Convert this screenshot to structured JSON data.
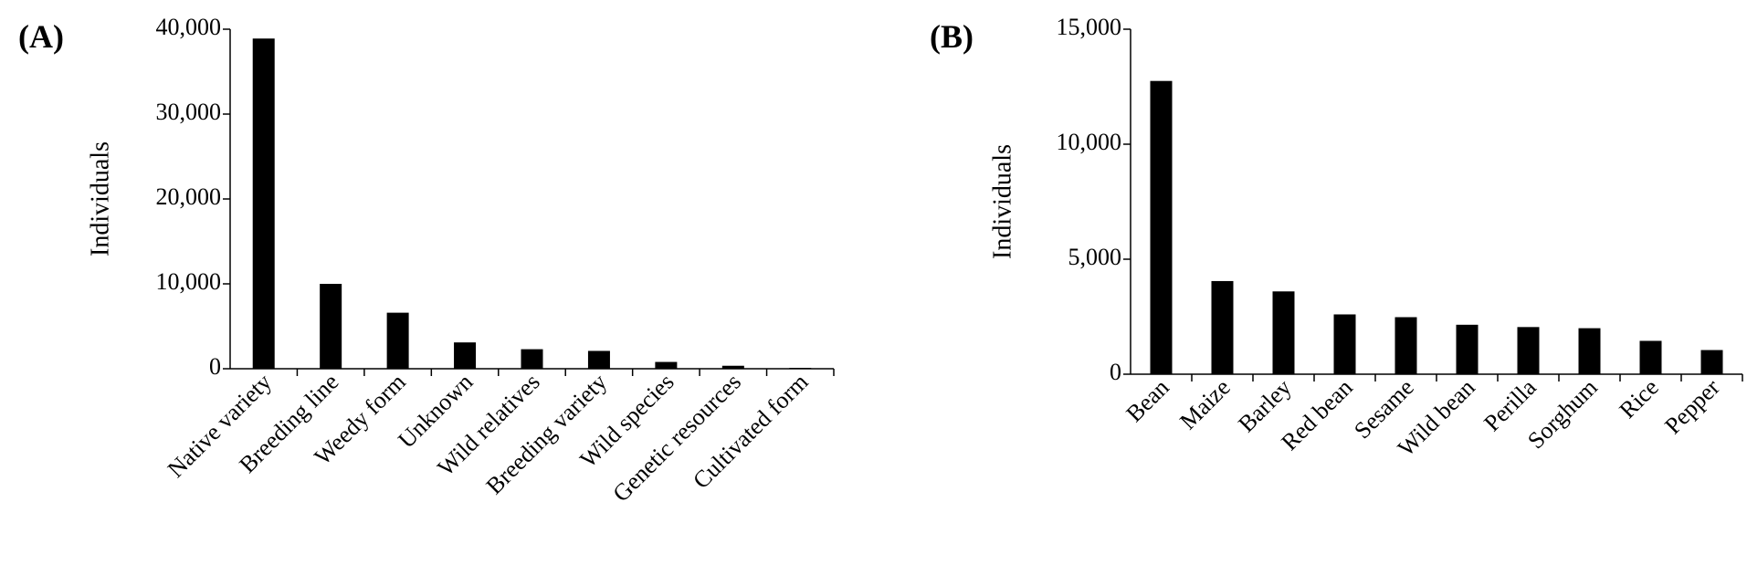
{
  "chart_data": [
    {
      "type": "bar",
      "panel_label": "(A)",
      "ylabel": "Individuals",
      "ylim": [
        0,
        40000
      ],
      "yticks": [
        0,
        10000,
        20000,
        30000,
        40000
      ],
      "ytick_labels": [
        "0",
        "10,000",
        "20,000",
        "30,000",
        "40,000"
      ],
      "categories": [
        "Native variety",
        "Breeding line",
        "Weedy form",
        "Unknown",
        "Wild relatives",
        "Breeding variety",
        "Wild species",
        "Genetic resources",
        "Cultivated form"
      ],
      "values": [
        38900,
        10000,
        6600,
        3100,
        2300,
        2100,
        800,
        350,
        100
      ],
      "bar_color": "#000000",
      "grid": false
    },
    {
      "type": "bar",
      "panel_label": "(B)",
      "ylabel": "Individuals",
      "ylim": [
        0,
        15000
      ],
      "yticks": [
        0,
        5000,
        10000,
        15000
      ],
      "ytick_labels": [
        "0",
        "5,000",
        "10,000",
        "15,000"
      ],
      "categories": [
        "Bean",
        "Maize",
        "Barley",
        "Red bean",
        "Sesame",
        "Wild bean",
        "Perilla",
        "Sorghum",
        "Rice",
        "Pepper"
      ],
      "values": [
        12750,
        4050,
        3600,
        2600,
        2480,
        2150,
        2050,
        2000,
        1450,
        1050
      ],
      "bar_color": "#000000",
      "grid": false
    }
  ]
}
